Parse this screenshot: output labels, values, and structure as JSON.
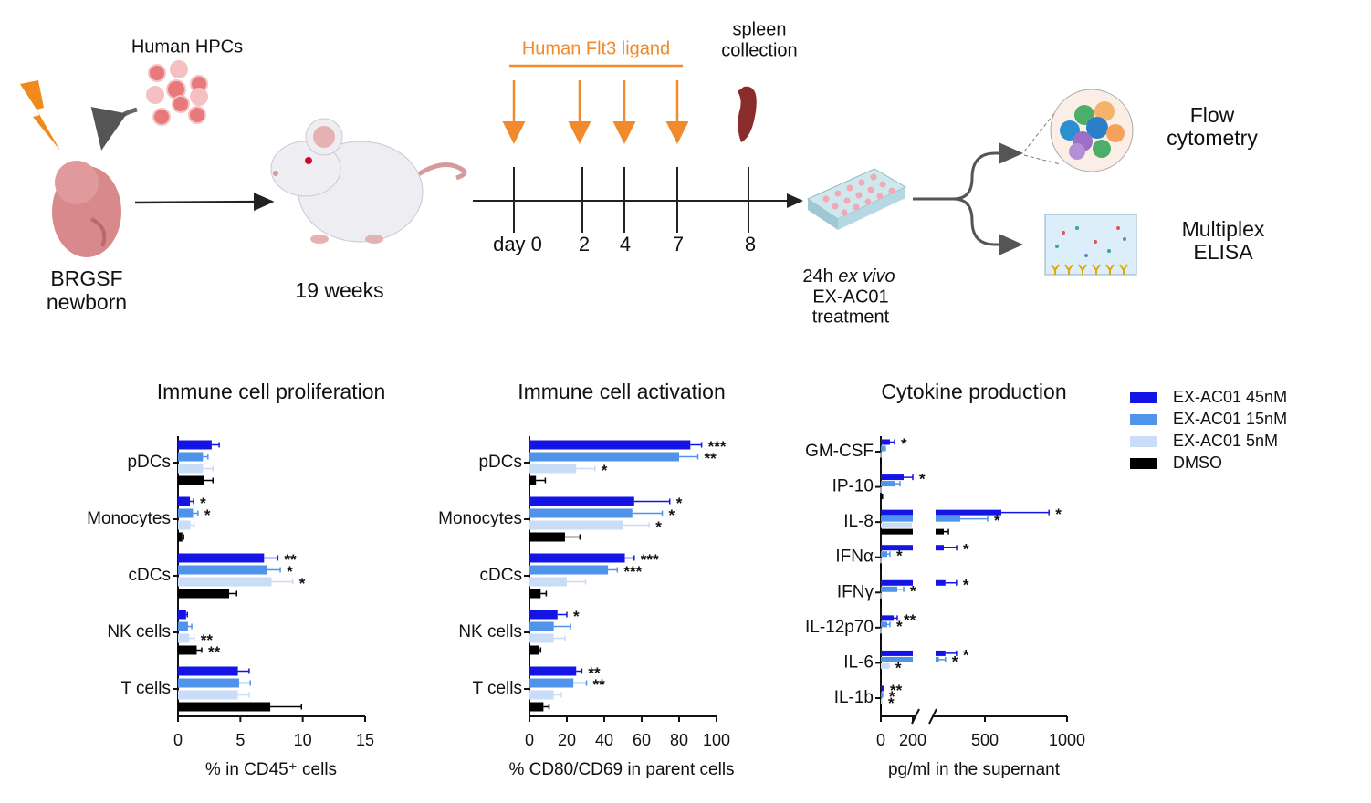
{
  "schematic": {
    "hpc_label": "Human HPCs",
    "newborn_label": [
      "BRGSF",
      "newborn"
    ],
    "age_label": "19 weeks",
    "ligand_label": "Human Flt3 ligand",
    "collection_label": [
      "spleen",
      "collection"
    ],
    "days": [
      "day 0",
      "2",
      "4",
      "7",
      "8"
    ],
    "treatment_label": {
      "prefix": "24h",
      "italic": "ex vivo",
      "lines": [
        "EX-AC01",
        "treatment"
      ]
    },
    "flow_label": [
      "Flow",
      "cytometry"
    ],
    "elisa_label": [
      "Multiplex",
      "ELISA"
    ]
  },
  "legend": [
    {
      "name": "EX-AC01 45nM",
      "color": "#1414e6"
    },
    {
      "name": "EX-AC01 15nM",
      "color": "#4f94ea"
    },
    {
      "name": "EX-AC01  5nM",
      "color": "#c9ddf6"
    },
    {
      "name": "DMSO",
      "color": "#000000"
    }
  ],
  "chart_data": [
    {
      "type": "hbar",
      "title": "Immune cell proliferation",
      "x_label": "% in CD45⁺ cells",
      "categories": [
        "pDCs",
        "Monocytes",
        "cDCs",
        "NK cells",
        "T cells"
      ],
      "xlim": [
        0,
        15
      ],
      "xticks": [
        0,
        5,
        10,
        15
      ],
      "series": [
        {
          "values": [
            2.7,
            0.95,
            6.9,
            0.65,
            4.8
          ],
          "errors": [
            0.6,
            0.3,
            1.1,
            0.1,
            0.9
          ],
          "significance": [
            null,
            "*",
            "**",
            null,
            null
          ]
        },
        {
          "values": [
            2.0,
            1.2,
            7.1,
            0.8,
            4.9
          ],
          "errors": [
            0.4,
            0.4,
            1.1,
            0.3,
            0.9
          ],
          "significance": [
            null,
            "*",
            "*",
            null,
            null
          ]
        },
        {
          "values": [
            2.0,
            1.0,
            7.5,
            0.9,
            4.8
          ],
          "errors": [
            0.8,
            0.3,
            1.7,
            0.4,
            0.9
          ],
          "significance": [
            null,
            null,
            "*",
            "**",
            null
          ]
        },
        {
          "values": [
            2.1,
            0.35,
            4.1,
            1.5,
            7.4
          ],
          "errors": [
            0.7,
            0.1,
            0.6,
            0.4,
            2.5
          ],
          "significance": [
            null,
            null,
            null,
            "**",
            null
          ]
        }
      ]
    },
    {
      "type": "hbar",
      "title": "Immune cell activation",
      "x_label": "% CD80/CD69 in parent cells",
      "categories": [
        "pDCs",
        "Monocytes",
        "cDCs",
        "NK cells",
        "T cells"
      ],
      "xlim": [
        0,
        100
      ],
      "xticks": [
        0,
        20,
        40,
        60,
        80,
        100
      ],
      "series": [
        {
          "values": [
            86,
            56,
            51,
            15,
            25
          ],
          "errors": [
            6,
            19,
            5,
            5,
            3
          ],
          "significance": [
            "***",
            "*",
            "***",
            "*",
            "**"
          ]
        },
        {
          "values": [
            80,
            55,
            42,
            13,
            23.5
          ],
          "errors": [
            10,
            16,
            5,
            9,
            7
          ],
          "significance": [
            "**",
            "*",
            "***",
            null,
            "**"
          ]
        },
        {
          "values": [
            25,
            50,
            20,
            13,
            13
          ],
          "errors": [
            10,
            14,
            10,
            6,
            4
          ],
          "significance": [
            "*",
            "*",
            null,
            null,
            null
          ]
        },
        {
          "values": [
            3.5,
            19,
            6,
            5,
            7.5
          ],
          "errors": [
            5,
            8,
            3,
            1,
            3
          ],
          "significance": [
            null,
            null,
            null,
            null,
            null
          ]
        }
      ]
    },
    {
      "type": "hbar_broken",
      "title": "Cytokine production",
      "x_label": "pg/ml in the supernant",
      "categories": [
        "GM-CSF",
        "IP-10",
        "IL-8",
        "IFNα",
        "IFNγ",
        "IL-12p70",
        "IL-6",
        "IL-1b"
      ],
      "xlim": [
        0,
        1000
      ],
      "xbreak": 200,
      "xticks": [
        0,
        200,
        500,
        1000
      ],
      "series": [
        {
          "values": [
            57,
            143,
            600,
            250,
            260,
            80,
            260,
            17
          ],
          "errors": [
            29,
            57,
            290,
            78,
            67,
            23,
            67,
            0
          ],
          "significance": [
            "*",
            "*",
            "*",
            "*",
            "*",
            "**",
            "*",
            "**"
          ]
        },
        {
          "values": [
            23,
            91,
            350,
            40,
            103,
            40,
            220,
            11
          ],
          "errors": [
            5,
            29,
            167,
            17,
            40,
            17,
            40,
            0
          ],
          "significance": [
            null,
            null,
            "*",
            "*",
            "*",
            "*",
            "*",
            "*"
          ]
        },
        {
          "values": [
            0,
            0,
            190,
            0,
            0,
            0,
            46,
            6
          ],
          "errors": [
            0,
            0,
            0,
            0,
            0,
            0,
            5,
            0
          ],
          "significance": [
            null,
            null,
            null,
            null,
            null,
            null,
            "*",
            "*"
          ]
        },
        {
          "values": [
            0,
            10,
            250,
            0,
            0,
            0,
            0,
            0
          ],
          "errors": [
            0,
            0,
            28,
            0,
            0,
            0,
            0,
            0
          ],
          "significance": [
            null,
            null,
            null,
            null,
            null,
            null,
            null,
            null
          ]
        }
      ]
    }
  ]
}
